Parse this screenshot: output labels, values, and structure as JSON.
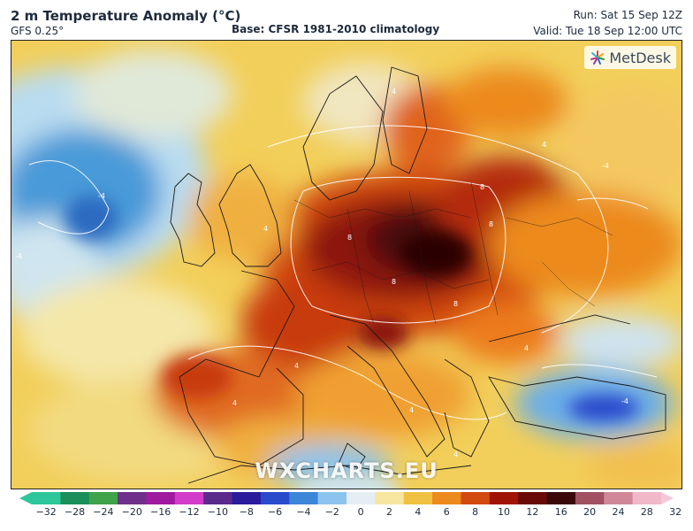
{
  "header": {
    "title": "2 m Temperature Anomaly (°C)",
    "model": "GFS 0.25°",
    "base": "Base: CFSR 1981-2010 climatology",
    "run": "Run: Sat 15 Sep 12Z",
    "valid": "Valid: Tue 18 Sep 12:00 UTC"
  },
  "logo": {
    "text": "MetDesk",
    "icon": "metdesk-logo-icon"
  },
  "watermark": "WXCHARTS.EU",
  "colorbar": {
    "ticks": [
      "−32",
      "−28",
      "−24",
      "−20",
      "−16",
      "−12",
      "−10",
      "−8",
      "−6",
      "−4",
      "−2",
      "0",
      "2",
      "4",
      "6",
      "8",
      "10",
      "12",
      "16",
      "20",
      "24",
      "28",
      "32"
    ],
    "colors": [
      "#2ec79a",
      "#1a8f5a",
      "#3fa34a",
      "#6e2f8a",
      "#a01aa0",
      "#d23cc8",
      "#5a2a8c",
      "#2a1a9c",
      "#2a4acc",
      "#3c86d8",
      "#8cc4ee",
      "#e6eef4",
      "#f6e6a0",
      "#f0c040",
      "#ec8a1e",
      "#d24a10",
      "#a01408",
      "#6a0a08",
      "#3a0808",
      "#a05060",
      "#d08898",
      "#f0b8c8"
    ],
    "left_arrow_color": "#2ec79a",
    "right_arrow_color": "#f4c8d8"
  },
  "map": {
    "contour_labels": [
      "-4",
      "-4",
      "-4",
      "4",
      "4",
      "4",
      "4",
      "8",
      "8",
      "8",
      "8",
      "8",
      "4",
      "4",
      "4",
      "-4",
      "4"
    ]
  }
}
